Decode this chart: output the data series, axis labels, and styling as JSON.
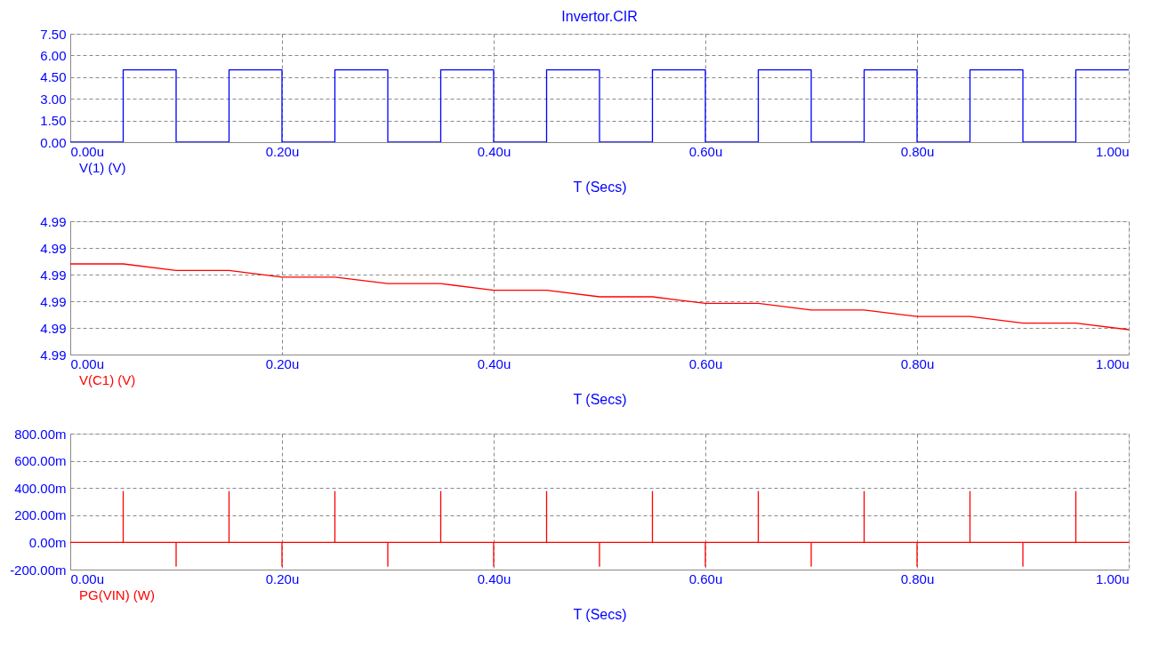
{
  "chart_data": [
    {
      "type": "line",
      "title": "Invertor.CIR",
      "xlabel": "T (Secs)",
      "grid": true,
      "line_style": "solid",
      "xlim": [
        0,
        1
      ],
      "xticks": [
        {
          "value": 0,
          "label": "0.00u"
        },
        {
          "value": 0.2,
          "label": "0.20u"
        },
        {
          "value": 0.4,
          "label": "0.40u"
        },
        {
          "value": 0.6,
          "label": "0.60u"
        },
        {
          "value": 0.8,
          "label": "0.80u"
        },
        {
          "value": 1,
          "label": "1.00u"
        }
      ],
      "ylim": [
        0,
        7.5
      ],
      "yticks": [
        {
          "value": 0,
          "label": "0.00"
        },
        {
          "value": 1.5,
          "label": "1.50"
        },
        {
          "value": 3,
          "label": "3.00"
        },
        {
          "value": 4.5,
          "label": "4.50"
        },
        {
          "value": 6,
          "label": "6.00"
        },
        {
          "value": 7.5,
          "label": "7.50"
        }
      ],
      "x": [
        0,
        0.05,
        0.05,
        0.1,
        0.1,
        0.15,
        0.15,
        0.2,
        0.2,
        0.25,
        0.25,
        0.3,
        0.3,
        0.35,
        0.35,
        0.4,
        0.4,
        0.45,
        0.45,
        0.5,
        0.5,
        0.55,
        0.55,
        0.6,
        0.6,
        0.65,
        0.65,
        0.7,
        0.7,
        0.75,
        0.75,
        0.8,
        0.8,
        0.85,
        0.85,
        0.9,
        0.9,
        0.95,
        0.95,
        1.0
      ],
      "series": [
        {
          "name": "V(1) (V)",
          "color": "#0000ff",
          "values": [
            0,
            0,
            5,
            5,
            0,
            0,
            5,
            5,
            0,
            0,
            5,
            5,
            0,
            0,
            5,
            5,
            0,
            0,
            5,
            5,
            0,
            0,
            5,
            5,
            0,
            0,
            5,
            5,
            0,
            0,
            5,
            5,
            0,
            0,
            5,
            5,
            0,
            0,
            5,
            5
          ]
        }
      ]
    },
    {
      "type": "line",
      "xlabel": "T (Secs)",
      "grid": true,
      "line_style": "solid",
      "xlim": [
        0,
        1
      ],
      "xticks": [
        {
          "value": 0,
          "label": "0.00u"
        },
        {
          "value": 0.2,
          "label": "0.20u"
        },
        {
          "value": 0.4,
          "label": "0.40u"
        },
        {
          "value": 0.6,
          "label": "0.60u"
        },
        {
          "value": 0.8,
          "label": "0.80u"
        },
        {
          "value": 1,
          "label": "1.00u"
        }
      ],
      "ylim": [
        4.9855,
        4.993
      ],
      "yticks": [
        {
          "value": 4.9855,
          "label": "4.99"
        },
        {
          "value": 4.987,
          "label": "4.99"
        },
        {
          "value": 4.9885,
          "label": "4.99"
        },
        {
          "value": 4.99,
          "label": "4.99"
        },
        {
          "value": 4.9915,
          "label": "4.99"
        },
        {
          "value": 4.993,
          "label": "4.99"
        }
      ],
      "x": [
        0,
        0.05,
        0.1,
        0.15,
        0.2,
        0.25,
        0.3,
        0.35,
        0.4,
        0.45,
        0.5,
        0.55,
        0.6,
        0.65,
        0.7,
        0.75,
        0.8,
        0.85,
        0.9,
        0.95,
        1.0
      ],
      "series": [
        {
          "name": "V(C1) (V)",
          "color": "#ff0000",
          "values": [
            4.9906,
            4.9906,
            4.99023,
            4.99023,
            4.98986,
            4.98986,
            4.98949,
            4.98949,
            4.98912,
            4.98912,
            4.98875,
            4.98875,
            4.98838,
            4.98838,
            4.98801,
            4.98801,
            4.98764,
            4.98764,
            4.98727,
            4.98727,
            4.9869
          ]
        }
      ]
    },
    {
      "type": "line",
      "xlabel": "T (Secs)",
      "grid": true,
      "line_style": "solid",
      "xlim": [
        0,
        1
      ],
      "xticks": [
        {
          "value": 0,
          "label": "0.00u"
        },
        {
          "value": 0.2,
          "label": "0.20u"
        },
        {
          "value": 0.4,
          "label": "0.40u"
        },
        {
          "value": 0.6,
          "label": "0.60u"
        },
        {
          "value": 0.8,
          "label": "0.80u"
        },
        {
          "value": 1,
          "label": "1.00u"
        }
      ],
      "ylim": [
        -200,
        800
      ],
      "yticks": [
        {
          "value": -200,
          "label": "-200.00m"
        },
        {
          "value": 0,
          "label": "0.00m"
        },
        {
          "value": 200,
          "label": "200.00m"
        },
        {
          "value": 400,
          "label": "400.00m"
        },
        {
          "value": 600,
          "label": "600.00m"
        },
        {
          "value": 800,
          "label": "800.00m"
        }
      ],
      "x": [
        0,
        0.05,
        0.05,
        0.05,
        0.1,
        0.1,
        0.1,
        0.15,
        0.15,
        0.15,
        0.2,
        0.2,
        0.2,
        0.25,
        0.25,
        0.25,
        0.3,
        0.3,
        0.3,
        0.35,
        0.35,
        0.35,
        0.4,
        0.4,
        0.4,
        0.45,
        0.45,
        0.45,
        0.5,
        0.5,
        0.5,
        0.55,
        0.55,
        0.55,
        0.6,
        0.6,
        0.6,
        0.65,
        0.65,
        0.65,
        0.7,
        0.7,
        0.7,
        0.75,
        0.75,
        0.75,
        0.8,
        0.8,
        0.8,
        0.85,
        0.85,
        0.85,
        0.9,
        0.9,
        0.9,
        0.95,
        0.95,
        0.95,
        1.0
      ],
      "series": [
        {
          "name": "PG(VIN) (W)",
          "color": "#ff0000",
          "values": [
            0,
            0,
            375,
            0,
            0,
            -175,
            0,
            0,
            375,
            0,
            0,
            -175,
            0,
            0,
            375,
            0,
            0,
            -175,
            0,
            0,
            375,
            0,
            0,
            -175,
            0,
            0,
            375,
            0,
            0,
            -175,
            0,
            0,
            375,
            0,
            0,
            -175,
            0,
            0,
            375,
            0,
            0,
            -175,
            0,
            0,
            375,
            0,
            0,
            -175,
            0,
            0,
            375,
            0,
            0,
            -175,
            0,
            0,
            375,
            0,
            0
          ]
        }
      ]
    }
  ]
}
